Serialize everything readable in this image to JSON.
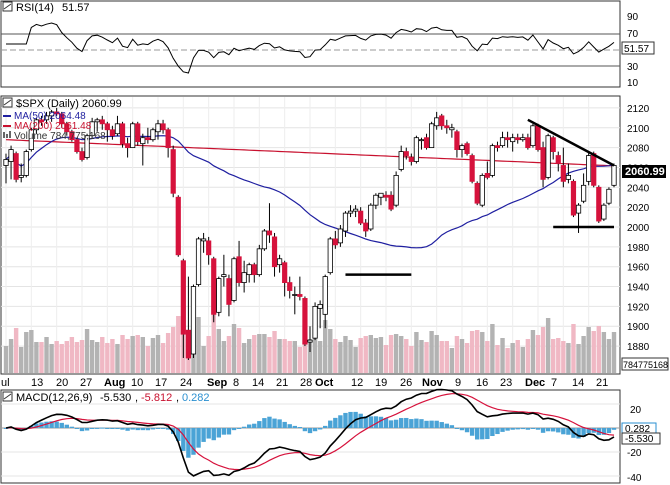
{
  "rsi_panel": {
    "label": "RSI(14)",
    "value": "51.57",
    "ticks": [
      "90",
      "70",
      "50",
      "30",
      "10"
    ],
    "box_value": "51.57"
  },
  "price_panel": {
    "title": "$SPX (Daily) 2060.99",
    "legend": [
      {
        "text": "MA(50) 2064.48",
        "color": "#1f1fa0"
      },
      {
        "text": "MA(200) 2061.48",
        "color": "#c8102e"
      },
      {
        "text": "Volume 784,775,168",
        "color": "#555555"
      }
    ],
    "ticks": [
      "2120",
      "2100",
      "2080",
      "2060",
      "2040",
      "2020",
      "2000",
      "1980",
      "1960",
      "1940",
      "1920",
      "1900",
      "1880"
    ],
    "price_box": "2060.99",
    "volume_box": "784775168"
  },
  "x_axis": {
    "labels": [
      "ul",
      "13",
      "20",
      "27",
      "Aug",
      "10",
      "17",
      "24",
      "Sep",
      "8",
      "14",
      "21",
      "28",
      "Oct",
      "12",
      "19",
      "26",
      "Nov",
      "9",
      "16",
      "23",
      "Dec",
      "7",
      "14",
      "21"
    ]
  },
  "macd_panel": {
    "label": "MACD(12,26,9)",
    "v1": "-5.530",
    "v2": "-5.812",
    "v3": "0.282",
    "ticks": [
      "20",
      "0",
      "-20",
      "-40"
    ],
    "box_hist": "0.282",
    "box_macd": "-5.530"
  },
  "colors": {
    "up": "#ffffff",
    "down": "#d6123c",
    "ma50": "#1f1fa0",
    "ma200": "#c8102e",
    "vol_up": "#b3b3b3",
    "vol_down": "#f0b8c4",
    "macd_hist": "#4aa3d6"
  },
  "chart_data": {
    "type": "candlestick",
    "title": "$SPX (Daily) 2060.99",
    "ylim": [
      1870,
      2130
    ],
    "rsi_ylim": [
      0,
      100
    ],
    "macd_ylim": [
      -45,
      30
    ],
    "trendlines": [
      {
        "label": "resistance",
        "from": [
          "2015-11-30",
          2108
        ],
        "to": [
          "2015-12-23",
          2062
        ]
      },
      {
        "label": "support",
        "from": [
          "2015-12-07",
          2000
        ],
        "to": [
          "2015-12-23",
          2000
        ]
      },
      {
        "label": "support",
        "from": [
          "2015-10-08",
          1952
        ],
        "to": [
          "2015-10-27",
          1952
        ]
      }
    ],
    "candles": [
      {
        "date": "2015-07-06",
        "o": 2062,
        "h": 2074,
        "l": 2044,
        "c": 2068
      },
      {
        "date": "2015-07-07",
        "o": 2066,
        "h": 2082,
        "l": 2048,
        "c": 2078
      },
      {
        "date": "2015-07-08",
        "o": 2074,
        "h": 2076,
        "l": 2045,
        "c": 2048
      },
      {
        "date": "2015-07-09",
        "o": 2050,
        "h": 2064,
        "l": 2045,
        "c": 2052
      },
      {
        "date": "2015-07-10",
        "o": 2052,
        "h": 2078,
        "l": 2050,
        "c": 2076
      },
      {
        "date": "2015-07-13",
        "o": 2078,
        "h": 2100,
        "l": 2076,
        "c": 2098
      },
      {
        "date": "2015-07-14",
        "o": 2098,
        "h": 2110,
        "l": 2094,
        "c": 2108
      },
      {
        "date": "2015-07-15",
        "o": 2108,
        "h": 2112,
        "l": 2102,
        "c": 2106
      },
      {
        "date": "2015-07-16",
        "o": 2108,
        "h": 2116,
        "l": 2104,
        "c": 2112
      },
      {
        "date": "2015-07-17",
        "o": 2112,
        "h": 2118,
        "l": 2106,
        "c": 2116
      },
      {
        "date": "2015-07-20",
        "o": 2116,
        "h": 2120,
        "l": 2112,
        "c": 2114
      },
      {
        "date": "2015-07-21",
        "o": 2114,
        "h": 2116,
        "l": 2100,
        "c": 2104
      },
      {
        "date": "2015-07-22",
        "o": 2104,
        "h": 2106,
        "l": 2092,
        "c": 2096
      },
      {
        "date": "2015-07-23",
        "o": 2096,
        "h": 2098,
        "l": 2086,
        "c": 2088
      },
      {
        "date": "2015-07-24",
        "o": 2088,
        "h": 2090,
        "l": 2074,
        "c": 2076
      },
      {
        "date": "2015-07-27",
        "o": 2076,
        "h": 2080,
        "l": 2066,
        "c": 2068
      },
      {
        "date": "2015-07-28",
        "o": 2070,
        "h": 2094,
        "l": 2068,
        "c": 2092
      },
      {
        "date": "2015-07-29",
        "o": 2092,
        "h": 2110,
        "l": 2090,
        "c": 2106
      },
      {
        "date": "2015-07-30",
        "o": 2106,
        "h": 2110,
        "l": 2096,
        "c": 2108
      },
      {
        "date": "2015-07-31",
        "o": 2108,
        "h": 2112,
        "l": 2098,
        "c": 2104
      },
      {
        "date": "2015-08-03",
        "o": 2104,
        "h": 2106,
        "l": 2086,
        "c": 2098
      },
      {
        "date": "2015-08-04",
        "o": 2098,
        "h": 2102,
        "l": 2088,
        "c": 2092
      },
      {
        "date": "2015-08-05",
        "o": 2094,
        "h": 2112,
        "l": 2092,
        "c": 2104
      },
      {
        "date": "2015-08-06",
        "o": 2104,
        "h": 2106,
        "l": 2080,
        "c": 2084
      },
      {
        "date": "2015-08-07",
        "o": 2084,
        "h": 2090,
        "l": 2070,
        "c": 2080
      },
      {
        "date": "2015-08-10",
        "o": 2080,
        "h": 2106,
        "l": 2080,
        "c": 2104
      },
      {
        "date": "2015-08-11",
        "o": 2104,
        "h": 2106,
        "l": 2082,
        "c": 2086
      },
      {
        "date": "2015-08-12",
        "o": 2084,
        "h": 2094,
        "l": 2062,
        "c": 2090
      },
      {
        "date": "2015-08-13",
        "o": 2090,
        "h": 2100,
        "l": 2084,
        "c": 2088
      },
      {
        "date": "2015-08-14",
        "o": 2088,
        "h": 2100,
        "l": 2086,
        "c": 2098
      },
      {
        "date": "2015-08-17",
        "o": 2096,
        "h": 2108,
        "l": 2088,
        "c": 2104
      },
      {
        "date": "2015-08-18",
        "o": 2104,
        "h": 2108,
        "l": 2094,
        "c": 2098
      },
      {
        "date": "2015-08-19",
        "o": 2098,
        "h": 2100,
        "l": 2070,
        "c": 2080
      },
      {
        "date": "2015-08-20",
        "o": 2078,
        "h": 2082,
        "l": 2030,
        "c": 2034
      },
      {
        "date": "2015-08-21",
        "o": 2030,
        "h": 2032,
        "l": 1970,
        "c": 1972
      },
      {
        "date": "2015-08-24",
        "o": 1966,
        "h": 1968,
        "l": 1868,
        "c": 1892
      },
      {
        "date": "2015-08-25",
        "o": 1896,
        "h": 1950,
        "l": 1866,
        "c": 1868
      },
      {
        "date": "2015-08-26",
        "o": 1872,
        "h": 1942,
        "l": 1868,
        "c": 1940
      },
      {
        "date": "2015-08-27",
        "o": 1942,
        "h": 1990,
        "l": 1940,
        "c": 1988
      },
      {
        "date": "2015-08-28",
        "o": 1986,
        "h": 1994,
        "l": 1974,
        "c": 1988
      },
      {
        "date": "2015-08-31",
        "o": 1986,
        "h": 1990,
        "l": 1962,
        "c": 1972
      },
      {
        "date": "2015-09-01",
        "o": 1968,
        "h": 1970,
        "l": 1904,
        "c": 1912
      },
      {
        "date": "2015-09-02",
        "o": 1914,
        "h": 1950,
        "l": 1910,
        "c": 1948
      },
      {
        "date": "2015-09-03",
        "o": 1950,
        "h": 1972,
        "l": 1940,
        "c": 1952
      },
      {
        "date": "2015-09-04",
        "o": 1948,
        "h": 1952,
        "l": 1910,
        "c": 1922
      },
      {
        "date": "2015-09-08",
        "o": 1926,
        "h": 1970,
        "l": 1924,
        "c": 1968
      },
      {
        "date": "2015-09-09",
        "o": 1970,
        "h": 1986,
        "l": 1940,
        "c": 1944
      },
      {
        "date": "2015-09-10",
        "o": 1944,
        "h": 1966,
        "l": 1934,
        "c": 1954
      },
      {
        "date": "2015-09-11",
        "o": 1952,
        "h": 1964,
        "l": 1944,
        "c": 1962
      },
      {
        "date": "2015-09-14",
        "o": 1962,
        "h": 1964,
        "l": 1944,
        "c": 1952
      },
      {
        "date": "2015-09-15",
        "o": 1952,
        "h": 1982,
        "l": 1950,
        "c": 1978
      },
      {
        "date": "2015-09-16",
        "o": 1978,
        "h": 1998,
        "l": 1976,
        "c": 1996
      },
      {
        "date": "2015-09-17",
        "o": 1996,
        "h": 2024,
        "l": 1984,
        "c": 1992
      },
      {
        "date": "2015-09-18",
        "o": 1990,
        "h": 1994,
        "l": 1950,
        "c": 1960
      },
      {
        "date": "2015-09-21",
        "o": 1962,
        "h": 1972,
        "l": 1954,
        "c": 1968
      },
      {
        "date": "2015-09-22",
        "o": 1964,
        "h": 1966,
        "l": 1930,
        "c": 1944
      },
      {
        "date": "2015-09-23",
        "o": 1944,
        "h": 1950,
        "l": 1928,
        "c": 1936
      },
      {
        "date": "2015-09-24",
        "o": 1932,
        "h": 1940,
        "l": 1912,
        "c": 1932
      },
      {
        "date": "2015-09-25",
        "o": 1932,
        "h": 1950,
        "l": 1926,
        "c": 1930
      },
      {
        "date": "2015-09-28",
        "o": 1928,
        "h": 1930,
        "l": 1880,
        "c": 1882
      },
      {
        "date": "2015-09-29",
        "o": 1884,
        "h": 1900,
        "l": 1874,
        "c": 1886
      },
      {
        "date": "2015-09-30",
        "o": 1888,
        "h": 1924,
        "l": 1886,
        "c": 1920
      },
      {
        "date": "2015-10-01",
        "o": 1918,
        "h": 1926,
        "l": 1898,
        "c": 1922
      },
      {
        "date": "2015-10-02",
        "o": 1912,
        "h": 1952,
        "l": 1898,
        "c": 1950
      },
      {
        "date": "2015-10-05",
        "o": 1954,
        "h": 1990,
        "l": 1952,
        "c": 1988
      },
      {
        "date": "2015-10-06",
        "o": 1988,
        "h": 1996,
        "l": 1978,
        "c": 1982
      },
      {
        "date": "2015-10-07",
        "o": 1984,
        "h": 2002,
        "l": 1980,
        "c": 1998
      },
      {
        "date": "2015-10-08",
        "o": 1996,
        "h": 2016,
        "l": 1990,
        "c": 2014
      },
      {
        "date": "2015-10-09",
        "o": 2014,
        "h": 2022,
        "l": 2010,
        "c": 2016
      },
      {
        "date": "2015-10-12",
        "o": 2016,
        "h": 2022,
        "l": 2010,
        "c": 2018
      },
      {
        "date": "2015-10-13",
        "o": 2016,
        "h": 2020,
        "l": 2002,
        "c": 2004
      },
      {
        "date": "2015-10-14",
        "o": 2004,
        "h": 2008,
        "l": 1990,
        "c": 1996
      },
      {
        "date": "2015-10-15",
        "o": 1998,
        "h": 2024,
        "l": 1996,
        "c": 2022
      },
      {
        "date": "2015-10-16",
        "o": 2022,
        "h": 2034,
        "l": 2018,
        "c": 2032
      },
      {
        "date": "2015-10-19",
        "o": 2030,
        "h": 2034,
        "l": 2022,
        "c": 2034
      },
      {
        "date": "2015-10-20",
        "o": 2032,
        "h": 2036,
        "l": 2026,
        "c": 2030
      },
      {
        "date": "2015-10-21",
        "o": 2032,
        "h": 2036,
        "l": 2016,
        "c": 2018
      },
      {
        "date": "2015-10-22",
        "o": 2022,
        "h": 2056,
        "l": 2020,
        "c": 2052
      },
      {
        "date": "2015-10-23",
        "o": 2058,
        "h": 2082,
        "l": 2056,
        "c": 2076
      },
      {
        "date": "2015-10-26",
        "o": 2076,
        "h": 2080,
        "l": 2068,
        "c": 2072
      },
      {
        "date": "2015-10-27",
        "o": 2070,
        "h": 2074,
        "l": 2062,
        "c": 2066
      },
      {
        "date": "2015-10-28",
        "o": 2066,
        "h": 2092,
        "l": 2064,
        "c": 2090
      },
      {
        "date": "2015-10-29",
        "o": 2088,
        "h": 2090,
        "l": 2078,
        "c": 2088
      },
      {
        "date": "2015-10-30",
        "o": 2090,
        "h": 2094,
        "l": 2078,
        "c": 2080
      },
      {
        "date": "2015-11-02",
        "o": 2080,
        "h": 2106,
        "l": 2080,
        "c": 2104
      },
      {
        "date": "2015-11-03",
        "o": 2102,
        "h": 2116,
        "l": 2098,
        "c": 2110
      },
      {
        "date": "2015-11-04",
        "o": 2112,
        "h": 2114,
        "l": 2098,
        "c": 2102
      },
      {
        "date": "2015-11-05",
        "o": 2102,
        "h": 2108,
        "l": 2094,
        "c": 2100
      },
      {
        "date": "2015-11-06",
        "o": 2098,
        "h": 2104,
        "l": 2090,
        "c": 2100
      },
      {
        "date": "2015-11-09",
        "o": 2096,
        "h": 2098,
        "l": 2070,
        "c": 2078
      },
      {
        "date": "2015-11-10",
        "o": 2078,
        "h": 2084,
        "l": 2070,
        "c": 2082
      },
      {
        "date": "2015-11-11",
        "o": 2084,
        "h": 2086,
        "l": 2072,
        "c": 2074
      },
      {
        "date": "2015-11-12",
        "o": 2072,
        "h": 2074,
        "l": 2044,
        "c": 2046
      },
      {
        "date": "2015-11-13",
        "o": 2044,
        "h": 2046,
        "l": 2022,
        "c": 2024
      },
      {
        "date": "2015-11-16",
        "o": 2022,
        "h": 2054,
        "l": 2020,
        "c": 2052
      },
      {
        "date": "2015-11-17",
        "o": 2054,
        "h": 2066,
        "l": 2048,
        "c": 2050
      },
      {
        "date": "2015-11-18",
        "o": 2052,
        "h": 2084,
        "l": 2050,
        "c": 2082
      },
      {
        "date": "2015-11-19",
        "o": 2082,
        "h": 2086,
        "l": 2076,
        "c": 2080
      },
      {
        "date": "2015-11-20",
        "o": 2082,
        "h": 2096,
        "l": 2080,
        "c": 2090
      },
      {
        "date": "2015-11-23",
        "o": 2090,
        "h": 2096,
        "l": 2080,
        "c": 2088
      },
      {
        "date": "2015-11-24",
        "o": 2086,
        "h": 2094,
        "l": 2076,
        "c": 2090
      },
      {
        "date": "2015-11-25",
        "o": 2090,
        "h": 2094,
        "l": 2084,
        "c": 2088
      },
      {
        "date": "2015-11-27",
        "o": 2088,
        "h": 2094,
        "l": 2086,
        "c": 2090
      },
      {
        "date": "2015-11-30",
        "o": 2090,
        "h": 2094,
        "l": 2078,
        "c": 2080
      },
      {
        "date": "2015-12-01",
        "o": 2082,
        "h": 2104,
        "l": 2080,
        "c": 2102
      },
      {
        "date": "2015-12-02",
        "o": 2102,
        "h": 2104,
        "l": 2076,
        "c": 2078
      },
      {
        "date": "2015-12-03",
        "o": 2080,
        "h": 2086,
        "l": 2040,
        "c": 2048
      },
      {
        "date": "2015-12-04",
        "o": 2050,
        "h": 2094,
        "l": 2048,
        "c": 2092
      },
      {
        "date": "2015-12-07",
        "o": 2090,
        "h": 2092,
        "l": 2068,
        "c": 2076
      },
      {
        "date": "2015-12-08",
        "o": 2072,
        "h": 2076,
        "l": 2056,
        "c": 2064
      },
      {
        "date": "2015-12-09",
        "o": 2062,
        "h": 2080,
        "l": 2040,
        "c": 2046
      },
      {
        "date": "2015-12-10",
        "o": 2048,
        "h": 2064,
        "l": 2044,
        "c": 2052
      },
      {
        "date": "2015-12-11",
        "o": 2046,
        "h": 2048,
        "l": 2010,
        "c": 2012
      },
      {
        "date": "2015-12-14",
        "o": 2014,
        "h": 2024,
        "l": 1994,
        "c": 2022
      },
      {
        "date": "2015-12-15",
        "o": 2026,
        "h": 2054,
        "l": 2024,
        "c": 2042
      },
      {
        "date": "2015-12-16",
        "o": 2046,
        "h": 2076,
        "l": 2042,
        "c": 2072
      },
      {
        "date": "2015-12-17",
        "o": 2074,
        "h": 2076,
        "l": 2040,
        "c": 2042
      },
      {
        "date": "2015-12-18",
        "o": 2040,
        "h": 2042,
        "l": 2004,
        "c": 2006
      },
      {
        "date": "2015-12-21",
        "o": 2008,
        "h": 2024,
        "l": 2006,
        "c": 2022
      },
      {
        "date": "2015-12-22",
        "o": 2024,
        "h": 2040,
        "l": 2022,
        "c": 2038
      },
      {
        "date": "2015-12-23",
        "o": 2042,
        "h": 2064,
        "l": 2040,
        "c": 2062
      }
    ]
  }
}
